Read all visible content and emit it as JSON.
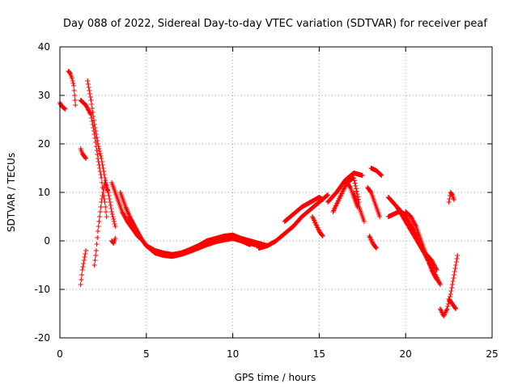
{
  "chart_data": {
    "type": "scatter",
    "title": "Day 088 of 2022, Sidereal Day-to-day VTEC variation (SDTVAR) for receiver peaf",
    "xlabel": "GPS time / hours",
    "ylabel": "SDTVAR / TECUs",
    "xlim": [
      0,
      25
    ],
    "ylim": [
      -20,
      40
    ],
    "xticks": [
      0,
      5,
      10,
      15,
      20,
      25
    ],
    "yticks": [
      -20,
      -10,
      0,
      10,
      20,
      30,
      40
    ],
    "xtick_labels": [
      "0",
      "5",
      "10",
      "15",
      "20",
      "25"
    ],
    "ytick_labels": [
      "-20",
      "-10",
      "0",
      "10",
      "20",
      "30",
      "40"
    ],
    "grid": true,
    "marker": "+",
    "color": "#ff0000",
    "series": [
      {
        "name": "s01",
        "x": [
          0.0,
          0.1,
          0.2,
          0.3
        ],
        "y": [
          28.5,
          27.8,
          27.5,
          27.2
        ]
      },
      {
        "name": "s02",
        "x": [
          0.5,
          0.6,
          0.7,
          0.8,
          0.85,
          0.9
        ],
        "y": [
          35.0,
          34.5,
          33.5,
          32.0,
          30.0,
          28.0
        ]
      },
      {
        "name": "s03",
        "x": [
          1.2,
          1.3,
          1.4,
          1.5
        ],
        "y": [
          19.0,
          18.0,
          17.5,
          17.0
        ]
      },
      {
        "name": "s04",
        "x": [
          1.2,
          1.3,
          1.4,
          1.5
        ],
        "y": [
          -9.0,
          -6.0,
          -4.0,
          -2.0
        ]
      },
      {
        "name": "s05",
        "x": [
          1.2,
          1.5,
          1.8,
          2.0,
          2.2,
          2.4,
          2.5,
          2.6,
          2.7
        ],
        "y": [
          29.0,
          28.0,
          26.0,
          22.0,
          17.0,
          13.0,
          10.0,
          8.0,
          5.0
        ]
      },
      {
        "name": "s06",
        "x": [
          1.6,
          1.8,
          2.0,
          2.2,
          2.4,
          2.6,
          2.8,
          3.0,
          3.2
        ],
        "y": [
          33.0,
          29.0,
          24.0,
          20.0,
          17.0,
          13.0,
          10.0,
          6.0,
          3.0
        ]
      },
      {
        "name": "s07",
        "x": [
          2.0,
          2.1,
          2.2,
          2.3,
          2.4,
          2.5,
          2.6,
          2.8
        ],
        "y": [
          -5.0,
          -2.0,
          2.0,
          5.0,
          8.0,
          10.0,
          12.0,
          10.0
        ]
      },
      {
        "name": "s08",
        "x": [
          3.0,
          3.1,
          3.2
        ],
        "y": [
          0.0,
          -0.5,
          0.5
        ]
      },
      {
        "name": "s09",
        "x": [
          3.0,
          3.3,
          3.6,
          3.9,
          4.2,
          4.5,
          4.8,
          5.0,
          5.5,
          6.0,
          6.5,
          7.0,
          7.5,
          8.0,
          8.5,
          9.0,
          9.5,
          10.0,
          10.5,
          11.0,
          11.5,
          12.0
        ],
        "y": [
          12.0,
          9.0,
          6.0,
          4.0,
          2.5,
          1.0,
          0.0,
          -1.0,
          -2.0,
          -2.5,
          -2.8,
          -2.5,
          -2.0,
          -1.5,
          -0.5,
          0.0,
          0.5,
          0.8,
          0.5,
          0.0,
          -0.5,
          -1.0
        ]
      },
      {
        "name": "s10",
        "x": [
          3.5,
          3.8,
          4.1,
          4.4,
          4.7,
          5.0,
          5.5,
          6.0,
          6.5,
          7.0,
          7.5,
          8.0,
          8.5,
          9.0,
          9.5,
          10.0,
          10.5,
          11.0,
          11.5
        ],
        "y": [
          10.0,
          7.0,
          4.5,
          2.5,
          0.5,
          -1.0,
          -2.0,
          -2.8,
          -3.0,
          -2.5,
          -1.8,
          -1.0,
          0.0,
          0.5,
          1.0,
          1.2,
          0.5,
          -0.5,
          -1.0
        ]
      },
      {
        "name": "s11",
        "x": [
          4.0,
          4.3,
          4.6,
          5.0,
          5.5,
          6.0,
          6.5,
          7.0,
          7.5,
          8.0,
          8.5,
          9.0,
          9.5,
          10.0,
          10.5,
          11.0
        ],
        "y": [
          5.0,
          3.0,
          1.0,
          -1.0,
          -2.5,
          -3.0,
          -3.2,
          -2.8,
          -2.2,
          -1.5,
          -0.8,
          -0.2,
          0.2,
          0.5,
          0.0,
          -0.8
        ]
      },
      {
        "name": "s12",
        "x": [
          11.5,
          12.0,
          12.5,
          13.0,
          13.5,
          14.0,
          14.5,
          15.0,
          15.5
        ],
        "y": [
          -1.5,
          -1.0,
          0.0,
          1.5,
          3.0,
          5.0,
          6.5,
          8.0,
          9.5
        ]
      },
      {
        "name": "s13",
        "x": [
          13.0,
          13.5,
          14.0,
          14.5,
          15.0,
          15.2
        ],
        "y": [
          4.0,
          5.5,
          7.0,
          8.0,
          9.0,
          8.5
        ]
      },
      {
        "name": "s14",
        "x": [
          14.6,
          14.8,
          15.0,
          15.2
        ],
        "y": [
          5.0,
          3.5,
          2.0,
          1.0
        ]
      },
      {
        "name": "s15",
        "x": [
          15.5,
          16.0,
          16.5,
          17.0,
          17.5
        ],
        "y": [
          8.0,
          10.0,
          12.5,
          14.0,
          13.5
        ]
      },
      {
        "name": "s16",
        "x": [
          15.8,
          16.2,
          16.6,
          17.0,
          17.3
        ],
        "y": [
          6.0,
          9.0,
          12.0,
          13.0,
          8.0
        ]
      },
      {
        "name": "s17",
        "x": [
          16.6,
          16.8,
          17.0,
          17.2
        ],
        "y": [
          12.0,
          11.0,
          9.0,
          7.0
        ]
      },
      {
        "name": "s18",
        "x": [
          17.0,
          17.2,
          17.4,
          17.6
        ],
        "y": [
          10.0,
          8.0,
          6.0,
          4.0
        ]
      },
      {
        "name": "s19",
        "x": [
          17.8,
          18.0,
          18.2,
          18.5
        ],
        "y": [
          11.0,
          10.0,
          8.0,
          5.0
        ]
      },
      {
        "name": "s20",
        "x": [
          17.9,
          18.1,
          18.3
        ],
        "y": [
          1.0,
          -0.5,
          -1.5
        ]
      },
      {
        "name": "s21",
        "x": [
          18.0,
          18.3,
          18.6
        ],
        "y": [
          15.0,
          14.5,
          13.5
        ]
      },
      {
        "name": "s22",
        "x": [
          19.0,
          19.5,
          20.0,
          20.5,
          21.0,
          21.5,
          22.0
        ],
        "y": [
          9.0,
          7.0,
          5.0,
          2.0,
          -2.0,
          -5.5,
          -9.0
        ]
      },
      {
        "name": "s23",
        "x": [
          19.5,
          20.0,
          20.5,
          21.0,
          21.5,
          21.8
        ],
        "y": [
          7.0,
          4.0,
          1.0,
          -2.0,
          -4.0,
          -6.0
        ]
      },
      {
        "name": "s24",
        "x": [
          20.0,
          20.3,
          20.6,
          20.9,
          21.2,
          21.5,
          21.8
        ],
        "y": [
          6.0,
          5.0,
          3.0,
          0.0,
          -3.0,
          -6.0,
          -8.0
        ]
      },
      {
        "name": "s25",
        "x": [
          19.0,
          19.3,
          19.6,
          20.0
        ],
        "y": [
          5.0,
          5.5,
          6.0,
          5.5
        ]
      },
      {
        "name": "s26",
        "x": [
          22.0,
          22.2,
          22.4,
          22.6,
          22.8,
          23.0
        ],
        "y": [
          -14.0,
          -15.5,
          -14.0,
          -11.0,
          -7.0,
          -3.0
        ]
      },
      {
        "name": "s27",
        "x": [
          22.5,
          22.7,
          22.9
        ],
        "y": [
          -12.0,
          -13.0,
          -14.0
        ]
      },
      {
        "name": "s28",
        "x": [
          22.5,
          22.6,
          22.7,
          22.8
        ],
        "y": [
          8.0,
          10.0,
          9.5,
          8.5
        ]
      }
    ]
  }
}
